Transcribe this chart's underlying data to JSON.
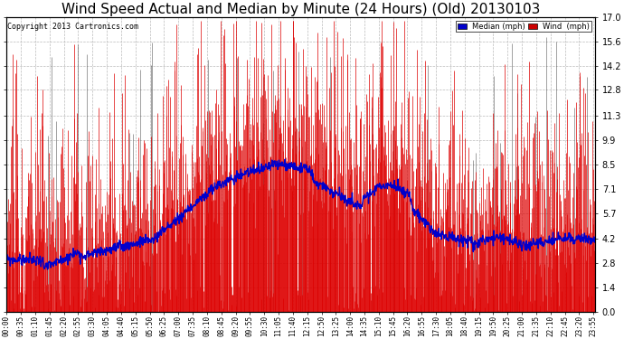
{
  "title": "Wind Speed Actual and Median by Minute (24 Hours) (Old) 20130103",
  "copyright": "Copyright 2013 Cartronics.com",
  "yticks": [
    0.0,
    1.4,
    2.8,
    4.2,
    5.7,
    7.1,
    8.5,
    9.9,
    11.3,
    12.8,
    14.2,
    15.6,
    17.0
  ],
  "ymax": 17.0,
  "ymin": 0.0,
  "legend_median_label": "Median (mph)",
  "legend_wind_label": "Wind  (mph)",
  "legend_median_color": "#0000cc",
  "legend_wind_color": "#cc0000",
  "background_color": "#ffffff",
  "grid_color": "#bbbbbb",
  "title_fontsize": 11,
  "wind_color": "#dd0000",
  "median_color": "#0000cc",
  "num_minutes": 1440,
  "wind_seed": 12345,
  "median_seed": 99
}
